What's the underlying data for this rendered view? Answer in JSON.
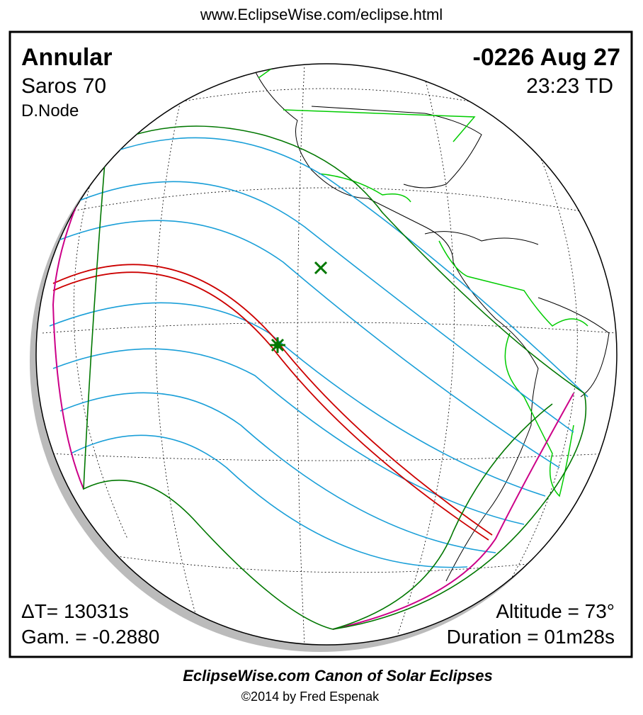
{
  "header": {
    "url": "www.EclipseWise.com/eclipse.html"
  },
  "map": {
    "eclipse_type": "Annular",
    "saros": "Saros  70",
    "node": "D.Node",
    "date": "-0226 Aug 27",
    "time": "23:23 TD",
    "delta_t": "ΔT=  13031s",
    "gamma": "Gam. = -0.2880",
    "altitude": "Altitude = 73°",
    "duration": "Duration = 01m28s"
  },
  "footer": {
    "title": "EclipseWise.com Canon of Solar Eclipses",
    "credit": "©2014 by Fred Espenak"
  }
}
